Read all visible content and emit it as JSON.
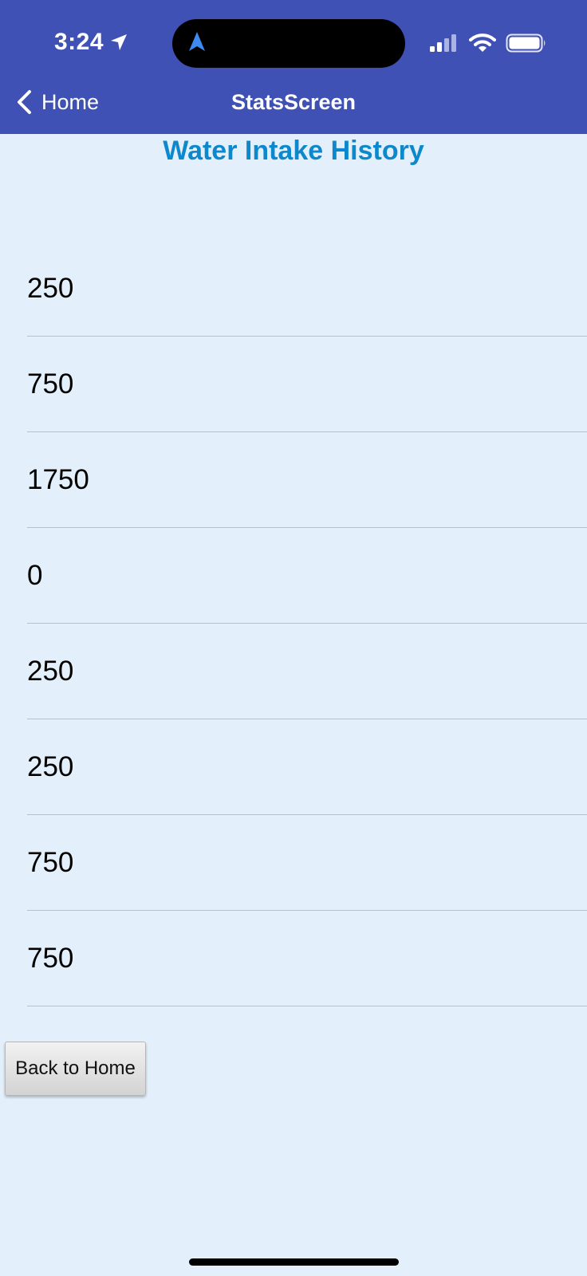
{
  "status_bar": {
    "time": "3:24"
  },
  "nav_bar": {
    "back_label": "Home",
    "title": "StatsScreen"
  },
  "heading": "Water Intake History",
  "history_items": [
    "250",
    "750",
    "1750",
    "0",
    "250",
    "250",
    "750",
    "750"
  ],
  "back_button_label": "Back to Home",
  "colors": {
    "header_bg": "#3f51b5",
    "page_bg": "#e3f0fb",
    "heading": "#0e88cc"
  },
  "icons": [
    "location-arrow-icon",
    "navigation-icon",
    "cellular-signal-icon",
    "wifi-icon",
    "battery-icon",
    "chevron-left-icon"
  ]
}
